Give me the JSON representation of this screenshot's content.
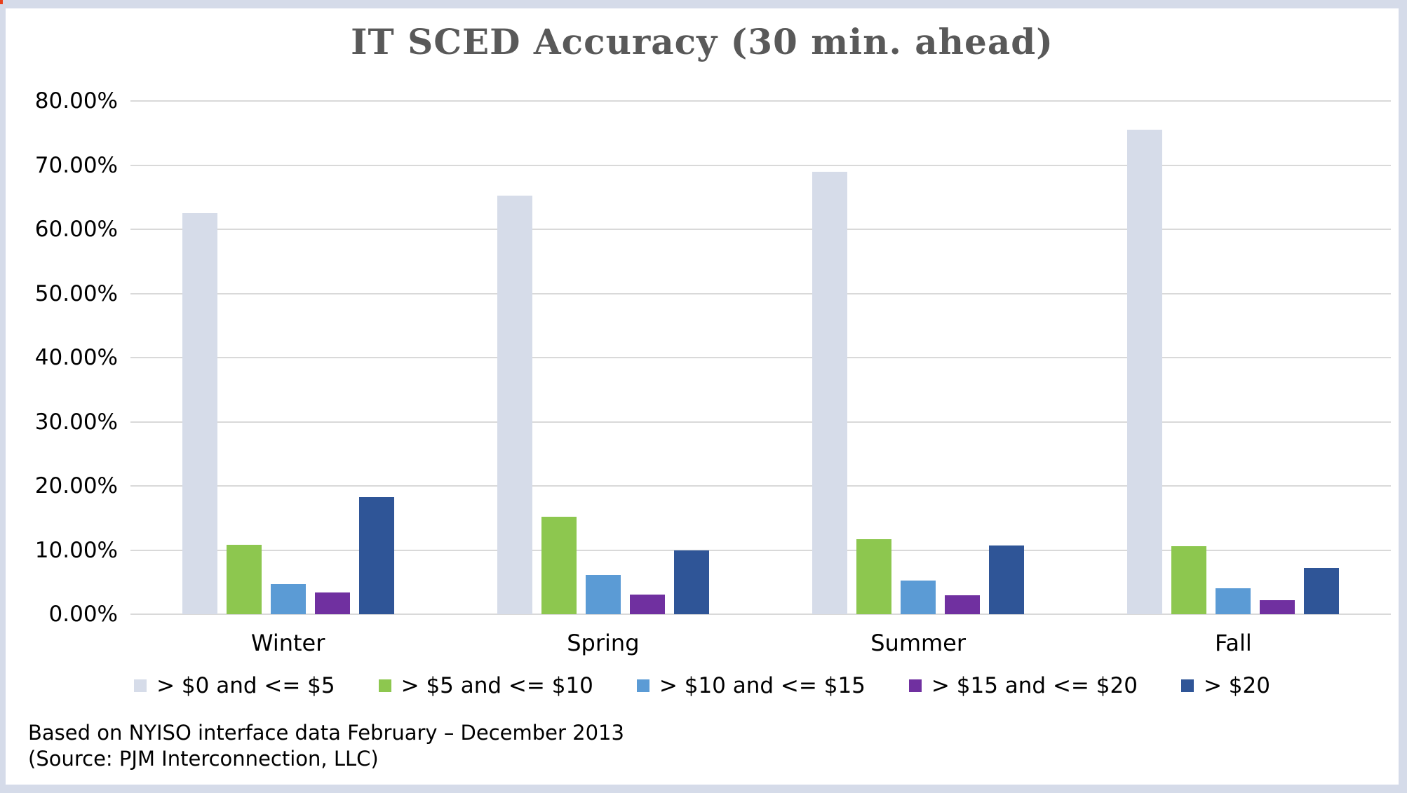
{
  "page": {
    "footnote_line1": "Based on NYISO interface data February – December 2013",
    "footnote_line2": "(Source: PJM Interconnection, LLC)"
  },
  "colors": {
    "frame": "#D5DBE9",
    "panel_background": "#FFFFFF",
    "gridline": "#D9D9D9",
    "title_text": "#595959",
    "axis_text": "#000000",
    "corner_artifact": "#E8401C"
  },
  "chart_data": {
    "type": "bar",
    "title": "IT SCED Accuracy (30 min. ahead)",
    "categories": [
      "Winter",
      "Spring",
      "Summer",
      "Fall"
    ],
    "series": [
      {
        "name": "> $0 and <= $5",
        "color": "#D6DCE9",
        "values": [
          62.5,
          65.3,
          69.0,
          75.5
        ]
      },
      {
        "name": "> $5 and <= $10",
        "color": "#8DC74F",
        "values": [
          10.8,
          15.2,
          11.7,
          10.6
        ]
      },
      {
        "name": "> $10 and <= $15",
        "color": "#5B9BD5",
        "values": [
          4.7,
          6.1,
          5.2,
          4.0
        ]
      },
      {
        "name": "> $15 and <= $20",
        "color": "#7030A0",
        "values": [
          3.4,
          3.1,
          3.0,
          2.2
        ]
      },
      {
        "name": "> $20",
        "color": "#2F5597",
        "values": [
          18.2,
          9.9,
          10.7,
          7.2
        ]
      }
    ],
    "xlabel": "",
    "ylabel": "",
    "ylim": [
      0,
      80
    ],
    "ytick_step": 10,
    "ytick_labels": [
      "0.00%",
      "10.00%",
      "20.00%",
      "30.00%",
      "40.00%",
      "50.00%",
      "60.00%",
      "70.00%",
      "80.00%"
    ],
    "grid": true,
    "legend_position": "bottom"
  }
}
